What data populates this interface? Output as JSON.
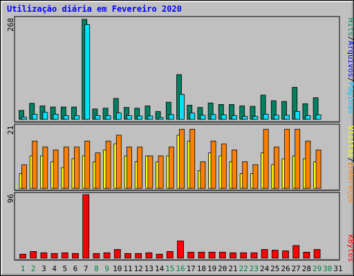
{
  "title": "Utilização diária em Fevereiro 2020",
  "colors": {
    "title": "#0000ff",
    "hits": "#008060",
    "files": "#00e0ff",
    "pages": "#00c0ff",
    "visits": "#ffff00",
    "sites": "#ff8000",
    "kbytes": "#ff0000",
    "weekend_label": "#008040",
    "weekday_label": "#000000",
    "plot_bg": "#c0c0c0"
  },
  "right_labels": {
    "panel1": [
      {
        "text": "Hits",
        "color": "#008060"
      },
      {
        "text": "/",
        "color": "#000000"
      },
      {
        "text": "Arquivos",
        "color": "#0000ff"
      },
      {
        "text": "/",
        "color": "#000000"
      },
      {
        "text": "Páginas",
        "color": "#00c0ff"
      }
    ],
    "panel2": [
      {
        "text": "Visitas",
        "color": "#ffff00"
      },
      {
        "text": "/",
        "color": "#000000"
      },
      {
        "text": "Endereços",
        "color": "#ff8000"
      }
    ],
    "panel3": [
      {
        "text": "KBytes",
        "color": "#ff0000"
      }
    ]
  },
  "chart_data": [
    {
      "type": "bar",
      "panel": "hits-files-pages",
      "ymax_label": "268",
      "ylim": [
        0,
        268
      ],
      "categories": [
        "1",
        "2",
        "3",
        "4",
        "5",
        "6",
        "7",
        "8",
        "9",
        "10",
        "11",
        "12",
        "13",
        "14",
        "15",
        "16",
        "17",
        "18",
        "19",
        "20",
        "21",
        "22",
        "23",
        "24",
        "25",
        "26",
        "27",
        "28",
        "29",
        "30",
        "31"
      ],
      "weekend": [
        1,
        2,
        8,
        9,
        15,
        16,
        22,
        23,
        29,
        30
      ],
      "series": [
        {
          "name": "Hits",
          "color": "#008060",
          "values": [
            24,
            43,
            36,
            33,
            33,
            33,
            268,
            28,
            30,
            56,
            32,
            30,
            36,
            21,
            46,
            120,
            38,
            32,
            44,
            40,
            40,
            36,
            35,
            65,
            50,
            48,
            86,
            42,
            58,
            0,
            0
          ]
        },
        {
          "name": "Arquivos",
          "color": "#00e0ff",
          "values": [
            6,
            14,
            19,
            14,
            10,
            10,
            254,
            10,
            10,
            17,
            10,
            9,
            9,
            5,
            13,
            67,
            17,
            11,
            13,
            12,
            10,
            8,
            8,
            14,
            11,
            11,
            21,
            10,
            12,
            0,
            0
          ]
        }
      ]
    },
    {
      "type": "bar",
      "panel": "visits-sites",
      "ymax_label": "21",
      "ylim": [
        0,
        21
      ],
      "categories": [
        "1",
        "2",
        "3",
        "4",
        "5",
        "6",
        "7",
        "8",
        "9",
        "10",
        "11",
        "12",
        "13",
        "14",
        "15",
        "16",
        "17",
        "18",
        "19",
        "20",
        "21",
        "22",
        "23",
        "24",
        "25",
        "26",
        "27",
        "28",
        "29",
        "30",
        "31"
      ],
      "series": [
        {
          "name": "Visitas",
          "color": "#ffff00",
          "values": [
            5,
            11,
            11,
            9,
            7,
            10,
            11,
            9,
            13,
            15,
            11,
            9,
            11,
            9,
            11,
            18,
            16,
            6,
            12,
            11,
            9,
            5,
            5,
            12,
            8,
            10,
            11,
            10,
            9,
            0,
            0
          ]
        },
        {
          "name": "Endereços",
          "color": "#ff8000",
          "values": [
            8,
            16,
            14,
            13,
            14,
            14,
            16,
            12,
            16,
            18,
            14,
            14,
            11,
            11,
            14,
            20,
            20,
            9,
            16,
            15,
            13,
            9,
            8,
            20,
            14,
            20,
            20,
            16,
            13,
            0,
            0
          ]
        }
      ]
    },
    {
      "type": "bar",
      "panel": "kbytes",
      "ymax_label": "96",
      "ylim": [
        0,
        96
      ],
      "categories": [
        "1",
        "2",
        "3",
        "4",
        "5",
        "6",
        "7",
        "8",
        "9",
        "10",
        "11",
        "12",
        "13",
        "14",
        "15",
        "16",
        "17",
        "18",
        "19",
        "20",
        "21",
        "22",
        "23",
        "24",
        "25",
        "26",
        "27",
        "28",
        "29",
        "30",
        "31"
      ],
      "series": [
        {
          "name": "KBytes",
          "color": "#ff0000",
          "values": [
            6,
            10,
            8,
            7,
            8,
            7,
            96,
            7,
            8,
            13,
            7,
            7,
            8,
            6,
            10,
            26,
            9,
            9,
            9,
            9,
            8,
            8,
            8,
            13,
            12,
            11,
            19,
            9,
            13,
            0,
            0
          ]
        }
      ]
    }
  ]
}
